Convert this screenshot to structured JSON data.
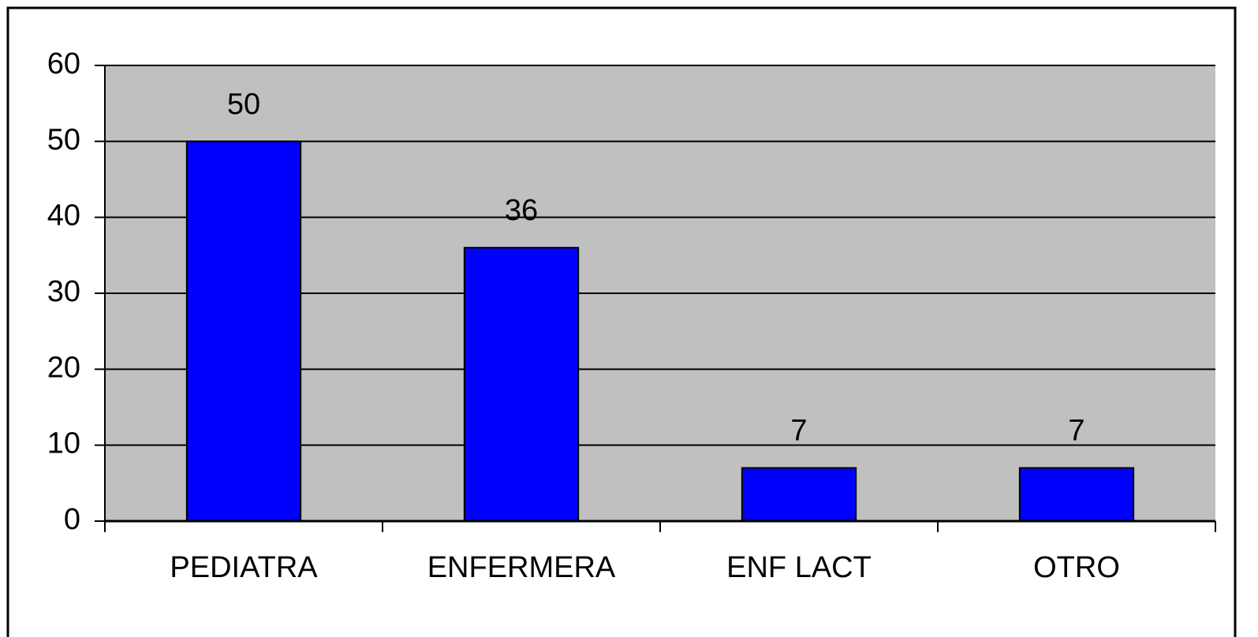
{
  "chart_data": {
    "type": "bar",
    "categories": [
      "PEDIATRA",
      "ENFERMERA",
      "ENF LACT",
      "OTRO"
    ],
    "values": [
      50,
      36,
      7,
      7
    ],
    "color": "#0000ff",
    "ylim": [
      0,
      60
    ],
    "yticks": [
      0,
      10,
      20,
      30,
      40,
      50,
      60
    ],
    "grid": true
  }
}
